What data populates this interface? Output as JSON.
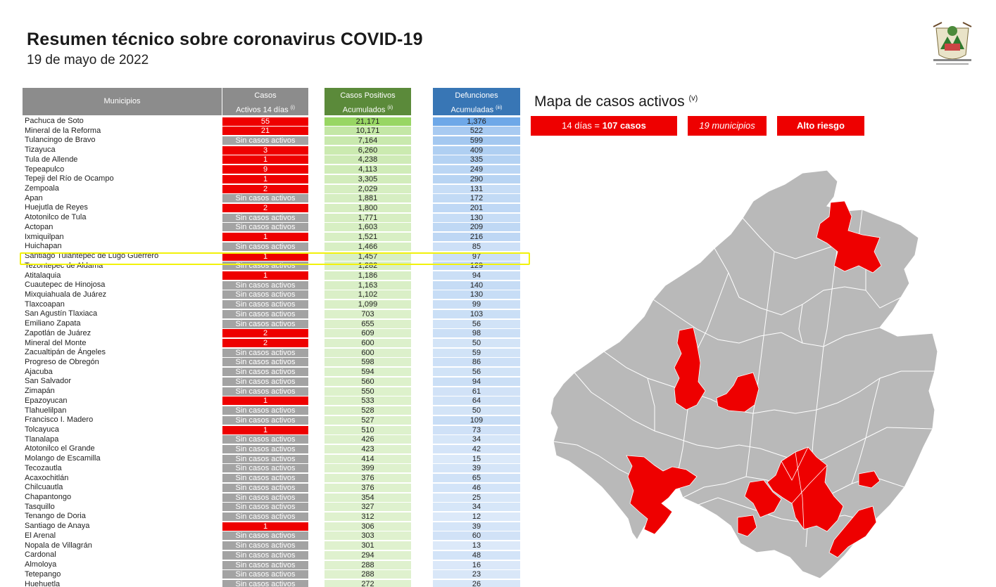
{
  "header": {
    "title": "Resumen técnico sobre coronavirus COVID-19",
    "date": "19 de mayo de 2022"
  },
  "table": {
    "col_municipios": "Municipios",
    "col_casos_l1": "Casos",
    "col_casos_l2": "Activos 14 días",
    "col_casos_sup": "(i)",
    "col_pos_l1": "Casos Positivos",
    "col_pos_l2": "Acumulados",
    "col_pos_sup": "(ii)",
    "col_def_l1": "Defunciones",
    "col_def_l2": "Acumuladas",
    "col_def_sup": "(iii)",
    "rows": [
      {
        "m": "Pachuca de Soto",
        "c": "55",
        "p": "21,171",
        "d": "1,376"
      },
      {
        "m": "Mineral de la Reforma",
        "c": "21",
        "p": "10,171",
        "d": "522"
      },
      {
        "m": "Tulancingo de Bravo",
        "c": "Sin casos activos",
        "p": "7,164",
        "d": "599"
      },
      {
        "m": "Tizayuca",
        "c": "3",
        "p": "6,260",
        "d": "409"
      },
      {
        "m": "Tula de Allende",
        "c": "1",
        "p": "4,238",
        "d": "335"
      },
      {
        "m": "Tepeapulco",
        "c": "9",
        "p": "4,113",
        "d": "249"
      },
      {
        "m": "Tepeji del Río de Ocampo",
        "c": "1",
        "p": "3,305",
        "d": "290"
      },
      {
        "m": "Zempoala",
        "c": "2",
        "p": "2,029",
        "d": "131"
      },
      {
        "m": "Apan",
        "c": "Sin casos activos",
        "p": "1,881",
        "d": "172"
      },
      {
        "m": "Huejutla de Reyes",
        "c": "2",
        "p": "1,800",
        "d": "201"
      },
      {
        "m": "Atotonilco de Tula",
        "c": "Sin casos activos",
        "p": "1,771",
        "d": "130"
      },
      {
        "m": "Actopan",
        "c": "Sin casos activos",
        "p": "1,603",
        "d": "209"
      },
      {
        "m": "Ixmiquilpan",
        "c": "1",
        "p": "1,521",
        "d": "216"
      },
      {
        "m": "Huichapan",
        "c": "Sin casos activos",
        "p": "1,466",
        "d": "85"
      },
      {
        "m": "Santiago Tulantepec de Lugo Guerrero",
        "c": "1",
        "p": "1,457",
        "d": "97"
      },
      {
        "m": "Tezontepec de Aldama",
        "c": "Sin casos activos",
        "p": "1,282",
        "d": "129"
      },
      {
        "m": "Atitalaquia",
        "c": "1",
        "p": "1,186",
        "d": "94"
      },
      {
        "m": "Cuautepec de Hinojosa",
        "c": "Sin casos activos",
        "p": "1,163",
        "d": "140"
      },
      {
        "m": "Mixquiahuala de Juárez",
        "c": "Sin casos activos",
        "p": "1,102",
        "d": "130"
      },
      {
        "m": "Tlaxcoapan",
        "c": "Sin casos activos",
        "p": "1,099",
        "d": "99"
      },
      {
        "m": "San Agustín Tlaxiaca",
        "c": "Sin casos activos",
        "p": "703",
        "d": "103"
      },
      {
        "m": "Emiliano Zapata",
        "c": "Sin casos activos",
        "p": "655",
        "d": "56"
      },
      {
        "m": "Zapotlán de Juárez",
        "c": "2",
        "p": "609",
        "d": "98"
      },
      {
        "m": "Mineral del Monte",
        "c": "2",
        "p": "600",
        "d": "50"
      },
      {
        "m": "Zacualtipán de Ángeles",
        "c": "Sin casos activos",
        "p": "600",
        "d": "59"
      },
      {
        "m": "Progreso de Obregón",
        "c": "Sin casos activos",
        "p": "598",
        "d": "86"
      },
      {
        "m": "Ajacuba",
        "c": "Sin casos activos",
        "p": "594",
        "d": "56"
      },
      {
        "m": "San Salvador",
        "c": "Sin casos activos",
        "p": "560",
        "d": "94"
      },
      {
        "m": "Zimapán",
        "c": "Sin casos activos",
        "p": "550",
        "d": "61"
      },
      {
        "m": "Epazoyucan",
        "c": "1",
        "p": "533",
        "d": "64"
      },
      {
        "m": "Tlahuelilpan",
        "c": "Sin casos activos",
        "p": "528",
        "d": "50"
      },
      {
        "m": "Francisco I. Madero",
        "c": "Sin casos activos",
        "p": "527",
        "d": "109"
      },
      {
        "m": "Tolcayuca",
        "c": "1",
        "p": "510",
        "d": "73"
      },
      {
        "m": "Tlanalapa",
        "c": "Sin casos activos",
        "p": "426",
        "d": "34"
      },
      {
        "m": "Atotonilco el Grande",
        "c": "Sin casos activos",
        "p": "423",
        "d": "42"
      },
      {
        "m": "Molango de Escamilla",
        "c": "Sin casos activos",
        "p": "414",
        "d": "15"
      },
      {
        "m": "Tecozautla",
        "c": "Sin casos activos",
        "p": "399",
        "d": "39"
      },
      {
        "m": "Acaxochitlán",
        "c": "Sin casos activos",
        "p": "376",
        "d": "65"
      },
      {
        "m": "Chilcuautla",
        "c": "Sin casos activos",
        "p": "376",
        "d": "46"
      },
      {
        "m": "Chapantongo",
        "c": "Sin casos activos",
        "p": "354",
        "d": "25"
      },
      {
        "m": "Tasquillo",
        "c": "Sin casos activos",
        "p": "327",
        "d": "34"
      },
      {
        "m": "Tenango de Doria",
        "c": "Sin casos activos",
        "p": "312",
        "d": "12"
      },
      {
        "m": "Santiago de Anaya",
        "c": "1",
        "p": "306",
        "d": "39"
      },
      {
        "m": "El Arenal",
        "c": "Sin casos activos",
        "p": "303",
        "d": "60"
      },
      {
        "m": "Nopala de Villagrán",
        "c": "Sin casos activos",
        "p": "301",
        "d": "13"
      },
      {
        "m": "Cardonal",
        "c": "Sin casos activos",
        "p": "294",
        "d": "48"
      },
      {
        "m": "Almoloya",
        "c": "Sin casos activos",
        "p": "288",
        "d": "16"
      },
      {
        "m": "Tetepango",
        "c": "Sin casos activos",
        "p": "288",
        "d": "23"
      },
      {
        "m": "Huehuetla",
        "c": "Sin casos activos",
        "p": "272",
        "d": "26"
      }
    ]
  },
  "map": {
    "title": "Mapa de casos activos",
    "title_sup": "(v)",
    "badge_cases_prefix": "14 días = ",
    "badge_cases_value": "107 casos",
    "badge_municipios": "19 municipios",
    "badge_risk": "Alto riesgo",
    "active_color": "#ee0000",
    "inactive_color": "#b9b9b9"
  },
  "colors": {
    "header_gray": "#8c8c8c",
    "header_green": "#5b8a3a",
    "header_blue": "#3876b5",
    "positivos_max": [
      152,
      214,
      99
    ],
    "defunciones_max": [
      110,
      168,
      232
    ],
    "highlight": "#f2f20a"
  }
}
